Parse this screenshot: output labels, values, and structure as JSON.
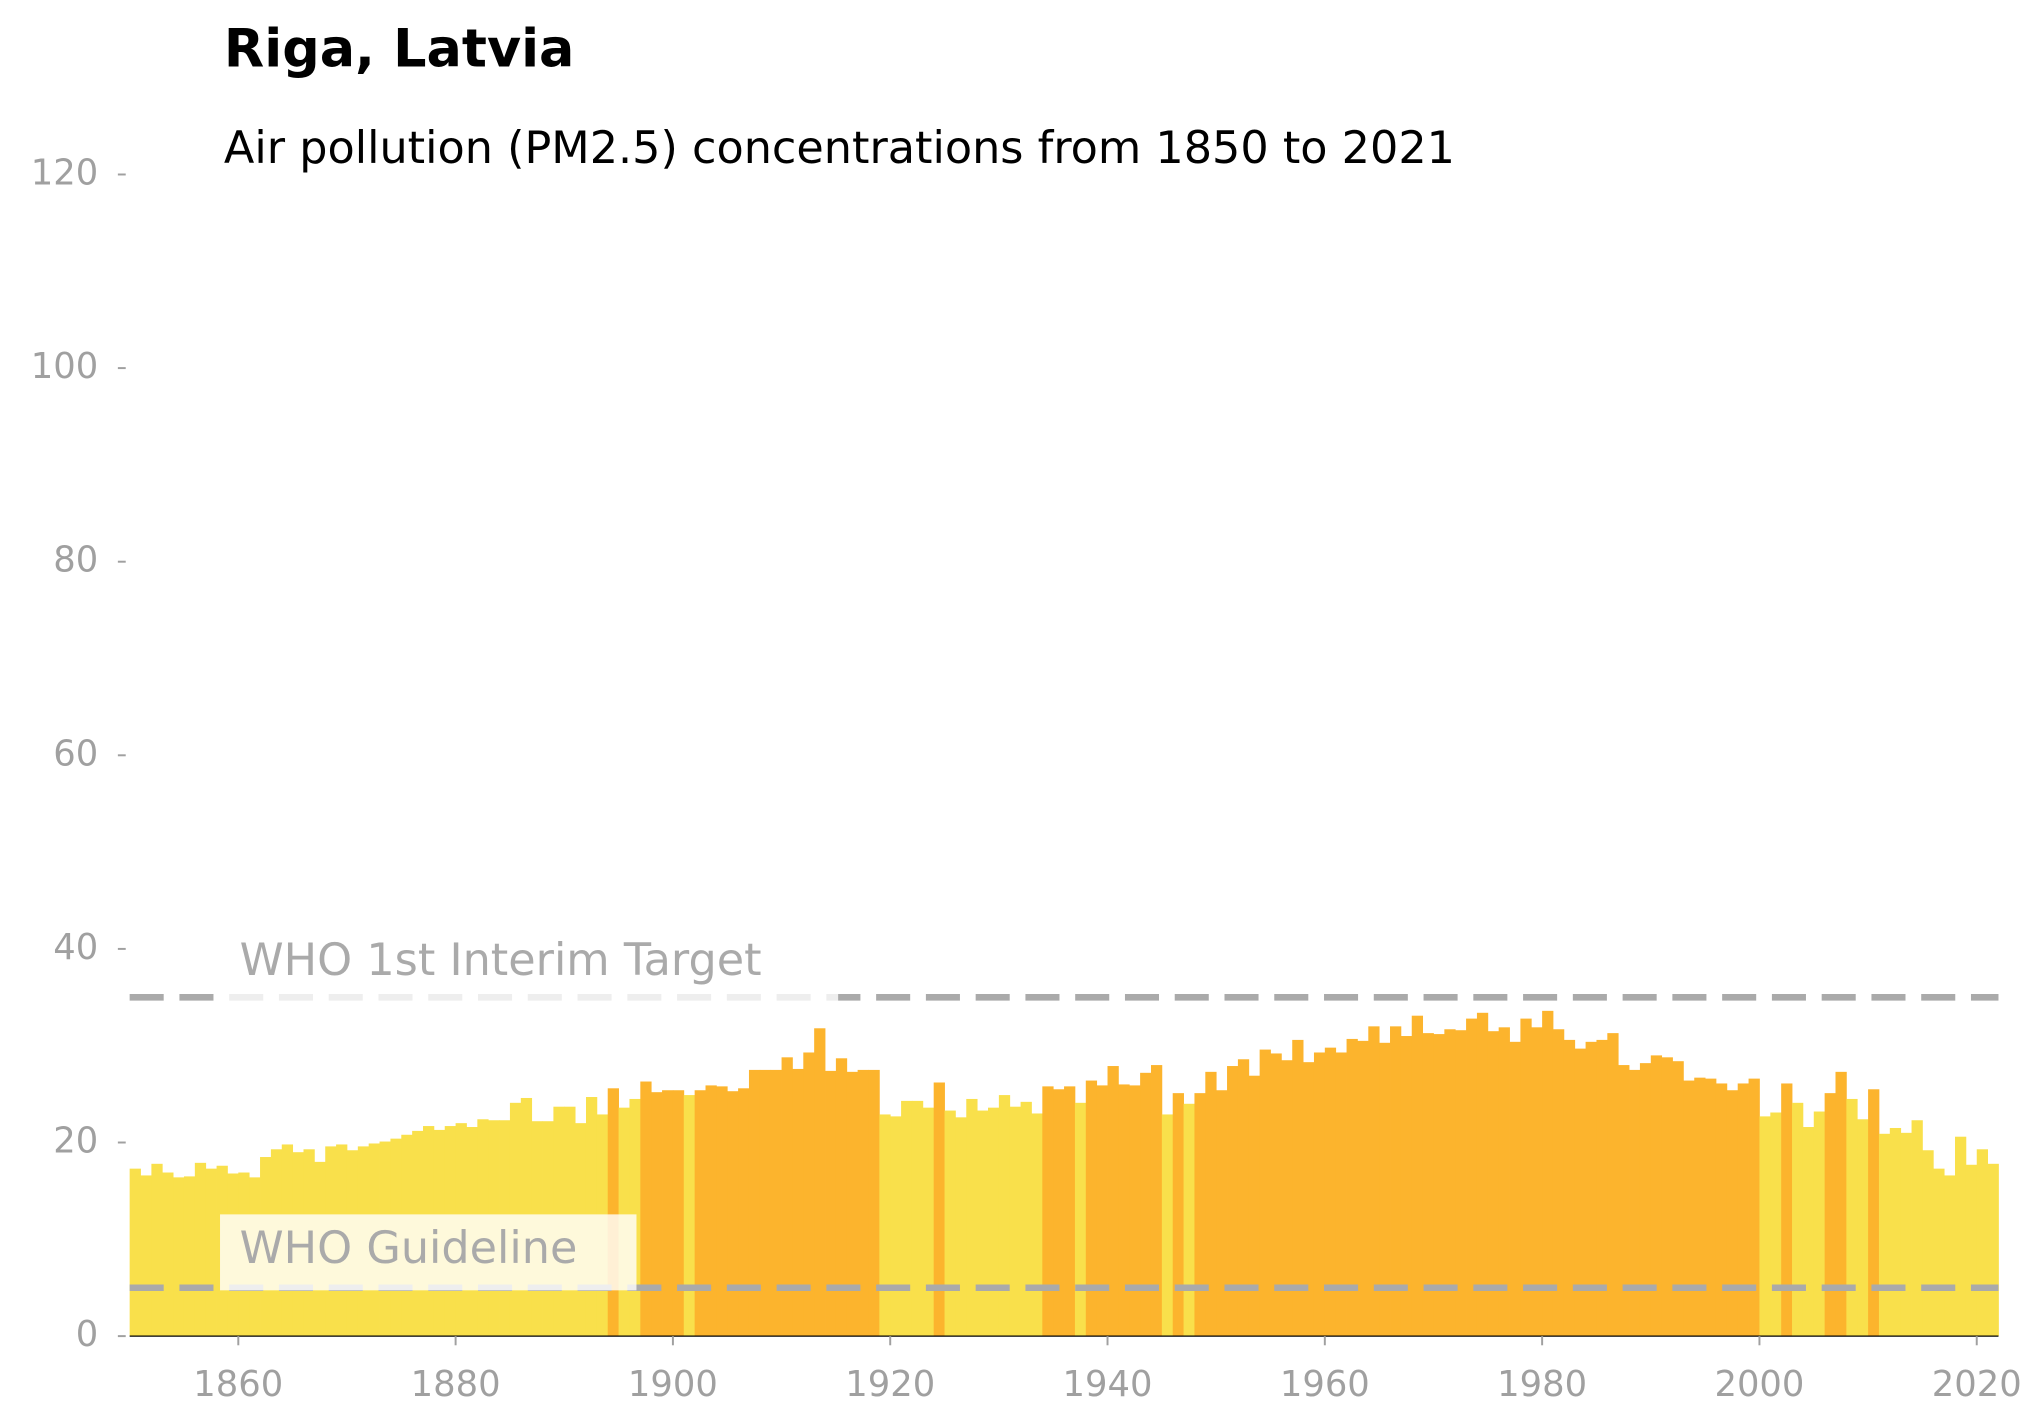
{
  "chart_data": {
    "type": "bar",
    "title": "Riga, Latvia",
    "subtitle": "Air pollution (PM2.5) concentrations from 1850 to 2021",
    "x": [
      1850,
      1851,
      1852,
      1853,
      1854,
      1855,
      1856,
      1857,
      1858,
      1859,
      1860,
      1861,
      1862,
      1863,
      1864,
      1865,
      1866,
      1867,
      1868,
      1869,
      1870,
      1871,
      1872,
      1873,
      1874,
      1875,
      1876,
      1877,
      1878,
      1879,
      1880,
      1881,
      1882,
      1883,
      1884,
      1885,
      1886,
      1887,
      1888,
      1889,
      1890,
      1891,
      1892,
      1893,
      1894,
      1895,
      1896,
      1897,
      1898,
      1899,
      1900,
      1901,
      1902,
      1903,
      1904,
      1905,
      1906,
      1907,
      1908,
      1909,
      1910,
      1911,
      1912,
      1913,
      1914,
      1915,
      1916,
      1917,
      1918,
      1919,
      1920,
      1921,
      1922,
      1923,
      1924,
      1925,
      1926,
      1927,
      1928,
      1929,
      1930,
      1931,
      1932,
      1933,
      1934,
      1935,
      1936,
      1937,
      1938,
      1939,
      1940,
      1941,
      1942,
      1943,
      1944,
      1945,
      1946,
      1947,
      1948,
      1949,
      1950,
      1951,
      1952,
      1953,
      1954,
      1955,
      1956,
      1957,
      1958,
      1959,
      1960,
      1961,
      1962,
      1963,
      1964,
      1965,
      1966,
      1967,
      1968,
      1969,
      1970,
      1971,
      1972,
      1973,
      1974,
      1975,
      1976,
      1977,
      1978,
      1979,
      1980,
      1981,
      1982,
      1983,
      1984,
      1985,
      1986,
      1987,
      1988,
      1989,
      1990,
      1991,
      1992,
      1993,
      1994,
      1995,
      1996,
      1997,
      1998,
      1999,
      2000,
      2001,
      2002,
      2003,
      2004,
      2005,
      2006,
      2007,
      2008,
      2009,
      2010,
      2011,
      2012,
      2013,
      2014,
      2015,
      2016,
      2017,
      2018,
      2019,
      2020,
      2021
    ],
    "values": [
      17.3,
      16.6,
      17.8,
      16.9,
      16.4,
      16.5,
      17.9,
      17.3,
      17.6,
      16.8,
      16.9,
      16.4,
      18.5,
      19.3,
      19.8,
      19.0,
      19.3,
      18.0,
      19.6,
      19.8,
      19.2,
      19.6,
      19.9,
      20.1,
      20.4,
      20.8,
      21.2,
      21.7,
      21.3,
      21.7,
      22.0,
      21.6,
      22.4,
      22.3,
      22.3,
      24.1,
      24.6,
      22.2,
      22.2,
      23.7,
      23.7,
      22.0,
      24.7,
      22.9,
      25.6,
      23.6,
      24.5,
      26.3,
      25.2,
      25.4,
      25.4,
      24.9,
      25.4,
      25.9,
      25.8,
      25.3,
      25.6,
      27.5,
      27.5,
      27.5,
      28.8,
      27.6,
      29.3,
      31.8,
      27.4,
      28.7,
      27.3,
      27.5,
      27.5,
      22.9,
      22.7,
      24.3,
      24.3,
      23.6,
      26.2,
      23.3,
      22.6,
      24.5,
      23.3,
      23.6,
      24.9,
      23.7,
      24.2,
      23.0,
      25.8,
      25.5,
      25.8,
      24.1,
      26.4,
      25.9,
      27.9,
      26.0,
      25.9,
      27.2,
      28.0,
      22.9,
      25.1,
      24.0,
      25.1,
      27.3,
      25.4,
      27.9,
      28.6,
      26.9,
      29.6,
      29.2,
      28.5,
      30.6,
      28.3,
      29.3,
      29.8,
      29.3,
      30.7,
      30.5,
      32.0,
      30.3,
      32.0,
      31.0,
      33.1,
      31.3,
      31.2,
      31.7,
      31.6,
      32.8,
      33.4,
      31.5,
      31.9,
      30.4,
      32.8,
      31.9,
      33.6,
      31.7,
      30.6,
      29.7,
      30.4,
      30.6,
      31.3,
      28.0,
      27.5,
      28.2,
      29.0,
      28.8,
      28.4,
      26.4,
      26.7,
      26.6,
      26.1,
      25.4,
      26.1,
      26.6,
      22.7,
      23.1,
      26.1,
      24.1,
      21.6,
      23.2,
      25.1,
      27.3,
      24.5,
      22.4,
      25.5,
      20.9,
      21.5,
      21.0,
      22.3,
      19.2,
      17.3,
      16.6,
      20.6,
      17.7,
      19.3,
      17.8
    ],
    "colors": [
      "#f9e04b",
      "#f9e04b",
      "#f9e04b",
      "#f9e04b",
      "#f9e04b",
      "#f9e04b",
      "#f9e04b",
      "#f9e04b",
      "#f9e04b",
      "#f9e04b",
      "#f9e04b",
      "#f9e04b",
      "#f9e04b",
      "#f9e04b",
      "#f9e04b",
      "#f9e04b",
      "#f9e04b",
      "#f9e04b",
      "#f9e04b",
      "#f9e04b",
      "#f9e04b",
      "#f9e04b",
      "#f9e04b",
      "#f9e04b",
      "#f9e04b",
      "#f9e04b",
      "#f9e04b",
      "#f9e04b",
      "#f9e04b",
      "#f9e04b",
      "#f9e04b",
      "#f9e04b",
      "#f9e04b",
      "#f9e04b",
      "#f9e04b",
      "#f9e04b",
      "#f9e04b",
      "#f9e04b",
      "#f9e04b",
      "#f9e04b",
      "#f9e04b",
      "#f9e04b",
      "#f9e04b",
      "#f9e04b",
      "#fcb42d",
      "#f9e04b",
      "#f9e04b",
      "#fcb42d",
      "#fcb42d",
      "#fcb42d",
      "#fcb42d",
      "#f9e04b",
      "#fcb42d",
      "#fcb42d",
      "#fcb42d",
      "#fcb42d",
      "#fcb42d",
      "#fcb42d",
      "#fcb42d",
      "#fcb42d",
      "#fcb42d",
      "#fcb42d",
      "#fcb42d",
      "#fcb42d",
      "#fcb42d",
      "#fcb42d",
      "#fcb42d",
      "#fcb42d",
      "#fcb42d",
      "#f9e04b",
      "#f9e04b",
      "#f9e04b",
      "#f9e04b",
      "#f9e04b",
      "#fcb42d",
      "#f9e04b",
      "#f9e04b",
      "#f9e04b",
      "#f9e04b",
      "#f9e04b",
      "#f9e04b",
      "#f9e04b",
      "#f9e04b",
      "#f9e04b",
      "#fcb42d",
      "#fcb42d",
      "#fcb42d",
      "#f9e04b",
      "#fcb42d",
      "#fcb42d",
      "#fcb42d",
      "#fcb42d",
      "#fcb42d",
      "#fcb42d",
      "#fcb42d",
      "#f9e04b",
      "#fcb42d",
      "#f9e04b",
      "#fcb42d",
      "#fcb42d",
      "#fcb42d",
      "#fcb42d",
      "#fcb42d",
      "#fcb42d",
      "#fcb42d",
      "#fcb42d",
      "#fcb42d",
      "#fcb42d",
      "#fcb42d",
      "#fcb42d",
      "#fcb42d",
      "#fcb42d",
      "#fcb42d",
      "#fcb42d",
      "#fcb42d",
      "#fcb42d",
      "#fcb42d",
      "#fcb42d",
      "#fcb42d",
      "#fcb42d",
      "#fcb42d",
      "#fcb42d",
      "#fcb42d",
      "#fcb42d",
      "#fcb42d",
      "#fcb42d",
      "#fcb42d",
      "#fcb42d",
      "#fcb42d",
      "#fcb42d",
      "#fcb42d",
      "#fcb42d",
      "#fcb42d",
      "#fcb42d",
      "#fcb42d",
      "#fcb42d",
      "#fcb42d",
      "#fcb42d",
      "#fcb42d",
      "#fcb42d",
      "#fcb42d",
      "#fcb42d",
      "#fcb42d",
      "#fcb42d",
      "#fcb42d",
      "#fcb42d",
      "#fcb42d",
      "#fcb42d",
      "#fcb42d",
      "#fcb42d",
      "#f9e04b",
      "#f9e04b",
      "#fcb42d",
      "#f9e04b",
      "#f9e04b",
      "#f9e04b",
      "#fcb42d",
      "#fcb42d",
      "#f9e04b",
      "#f9e04b",
      "#fcb42d",
      "#f9e04b",
      "#f9e04b",
      "#f9e04b",
      "#f9e04b",
      "#f9e04b",
      "#f9e04b",
      "#f9e04b",
      "#f9e04b",
      "#f9e04b",
      "#f9e04b",
      "#f9e04b"
    ],
    "xlim": [
      1850,
      2022
    ],
    "xticks": [
      1860,
      1880,
      1900,
      1920,
      1940,
      1960,
      1980,
      2000,
      2020
    ],
    "ylim": [
      0,
      120
    ],
    "yticks": [
      0,
      20,
      40,
      60,
      80,
      100,
      120
    ],
    "reference_lines": [
      {
        "value": 35,
        "label": "WHO 1st Interim Target"
      },
      {
        "value": 5,
        "label": "WHO Guideline"
      }
    ],
    "reference_color": "#aaaaaa"
  }
}
